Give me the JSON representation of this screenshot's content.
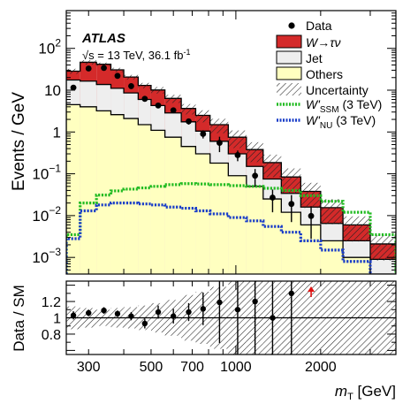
{
  "chart_data": [
    {
      "type": "histogram",
      "ylabel": "Events / GeV",
      "yscale": "log",
      "ylim": [
        0.0004,
        800
      ],
      "xscale": "log",
      "xlim": [
        250,
        3700
      ],
      "experiment_label": "ATLAS",
      "energy_label": "√s = 13 TeV, 36.1 fb",
      "energy_label_sup": "-1",
      "y_tick_labels": [
        {
          "value": 0.001,
          "base": "10",
          "exp": "−3"
        },
        {
          "value": 0.01,
          "base": "10",
          "exp": "−2"
        },
        {
          "value": 0.1,
          "base": "10",
          "exp": "−1"
        },
        {
          "value": 1,
          "base": "1",
          "exp": ""
        },
        {
          "value": 10,
          "base": "10",
          "exp": ""
        },
        {
          "value": 100,
          "base": "10",
          "exp": "2"
        }
      ],
      "bin_edges": [
        250,
        280,
        320,
        360,
        400,
        450,
        500,
        560,
        640,
        720,
        810,
        940,
        1090,
        1250,
        1450,
        1700,
        2000,
        2400,
        3000,
        3700
      ],
      "stack": [
        {
          "name": "Others",
          "legend_label": "Others",
          "color": "#ffffc0",
          "values": [
            4.5,
            4.0,
            3.2,
            2.6,
            2.1,
            1.5,
            1.1,
            0.75,
            0.45,
            0.3,
            0.18,
            0.09,
            0.05,
            0.025,
            0.012,
            0.006,
            0.0025,
            0.001,
            0.0004
          ]
        },
        {
          "name": "Jet",
          "legend_label": "Jet",
          "color": "#eeeeee",
          "values": [
            13,
            12.5,
            10.5,
            8.5,
            6.5,
            4.5,
            3.2,
            2.1,
            1.3,
            0.75,
            0.42,
            0.21,
            0.1,
            0.05,
            0.022,
            0.01,
            0.004,
            0.0015,
            0.0005
          ]
        },
        {
          "name": "Wtaunu",
          "legend_label": "W→τν",
          "color": "#d42a2a",
          "values": [
            11,
            30,
            28,
            19.5,
            12,
            7,
            5.8,
            3.5,
            1.9,
            1.45,
            0.9,
            0.45,
            0.23,
            0.11,
            0.05,
            0.022,
            0.009,
            0.0035,
            0.0012
          ]
        }
      ],
      "uncertainty_legend": "Uncertainty",
      "signals": [
        {
          "name": "W'SSM",
          "legend_main": "W'",
          "legend_sub": "SSM",
          "legend_suffix": " (3 TeV)",
          "color": "#22bb22",
          "values": [
            0.0035,
            0.02,
            0.031,
            0.039,
            0.043,
            0.046,
            0.05,
            0.055,
            0.058,
            0.057,
            0.055,
            0.052,
            0.05,
            0.045,
            0.04,
            0.03,
            0.022,
            0.012,
            0.0035
          ]
        },
        {
          "name": "W'NU",
          "legend_main": "W'",
          "legend_sub": "NU",
          "legend_suffix": " (3 TeV)",
          "color": "#1a3ec8",
          "values": [
            0.0028,
            0.013,
            0.018,
            0.02,
            0.02,
            0.019,
            0.018,
            0.016,
            0.015,
            0.013,
            0.011,
            0.009,
            0.0075,
            0.0055,
            0.004,
            0.0025,
            0.0015,
            0.0008,
            0.0003
          ]
        }
      ],
      "data": {
        "legend_label": "Data",
        "points": [
          {
            "x": 265,
            "y": 11.5,
            "err": 1.0
          },
          {
            "x": 300,
            "y": 33,
            "err": 2.0
          },
          {
            "x": 340,
            "y": 34,
            "err": 2.0
          },
          {
            "x": 380,
            "y": 22,
            "err": 1.5
          },
          {
            "x": 425,
            "y": 12.5,
            "err": 1.1
          },
          {
            "x": 475,
            "y": 6.2,
            "err": 0.7
          },
          {
            "x": 530,
            "y": 4.3,
            "err": 0.6
          },
          {
            "x": 600,
            "y": 3.3,
            "err": 0.45
          },
          {
            "x": 680,
            "y": 1.8,
            "err": 0.3
          },
          {
            "x": 765,
            "y": 0.9,
            "err": 0.2
          },
          {
            "x": 875,
            "y": 0.55,
            "err": 0.22
          },
          {
            "x": 1015,
            "y": 0.28,
            "err": 0.08
          },
          {
            "x": 1170,
            "y": 0.09,
            "err": 0.04
          },
          {
            "x": 1350,
            "y": 0.027,
            "err": 0.015
          },
          {
            "x": 1575,
            "y": 0.019,
            "err": 0.012
          },
          {
            "x": 1850,
            "y": 0.0098,
            "err": 0.007
          }
        ]
      }
    },
    {
      "type": "ratio",
      "ylabel": "Data / SM",
      "ylim": [
        0.55,
        1.45
      ],
      "y_ticks": [
        0.8,
        1,
        1.2
      ],
      "y_tick_labels": [
        "0.8",
        "1",
        "1.2"
      ],
      "xlabel_main": "m",
      "xlabel_sub": "T",
      "xlabel_unit": " [GeV]",
      "x_ticks": [
        300,
        500,
        700,
        1000,
        2000
      ],
      "x_tick_labels": [
        "300",
        "500",
        "700",
        "1000",
        "2000"
      ],
      "uncertainty_band": [
        0.14,
        0.12,
        0.1,
        0.12,
        0.13,
        0.15,
        0.18,
        0.22,
        0.28,
        0.32,
        0.38,
        0.45,
        0.5,
        0.55,
        0.6,
        0.6,
        0.6,
        0.6,
        0.6
      ],
      "points": [
        {
          "x": 265,
          "y": 1.03,
          "err": 0.05
        },
        {
          "x": 300,
          "y": 1.06,
          "err": 0.04
        },
        {
          "x": 340,
          "y": 1.09,
          "err": 0.04
        },
        {
          "x": 380,
          "y": 1.05,
          "err": 0.04
        },
        {
          "x": 425,
          "y": 1.02,
          "err": 0.05
        },
        {
          "x": 475,
          "y": 0.93,
          "err": 0.06
        },
        {
          "x": 530,
          "y": 1.07,
          "err": 0.08
        },
        {
          "x": 600,
          "y": 1.02,
          "err": 0.09
        },
        {
          "x": 680,
          "y": 1.07,
          "err": 0.11
        },
        {
          "x": 765,
          "y": 1.11,
          "err": 0.2
        },
        {
          "x": 875,
          "y": 1.19,
          "err": 0.5
        },
        {
          "x": 1015,
          "y": 1.1,
          "err": 0.6
        },
        {
          "x": 1170,
          "y": 1.2,
          "err": 0.7
        },
        {
          "x": 1350,
          "y": 1.0,
          "err": 0.8
        },
        {
          "x": 1575,
          "y": 1.3,
          "err": 0.8
        }
      ],
      "offscale_arrows": [
        {
          "x": 1850,
          "color": "#dd1111"
        }
      ]
    }
  ]
}
